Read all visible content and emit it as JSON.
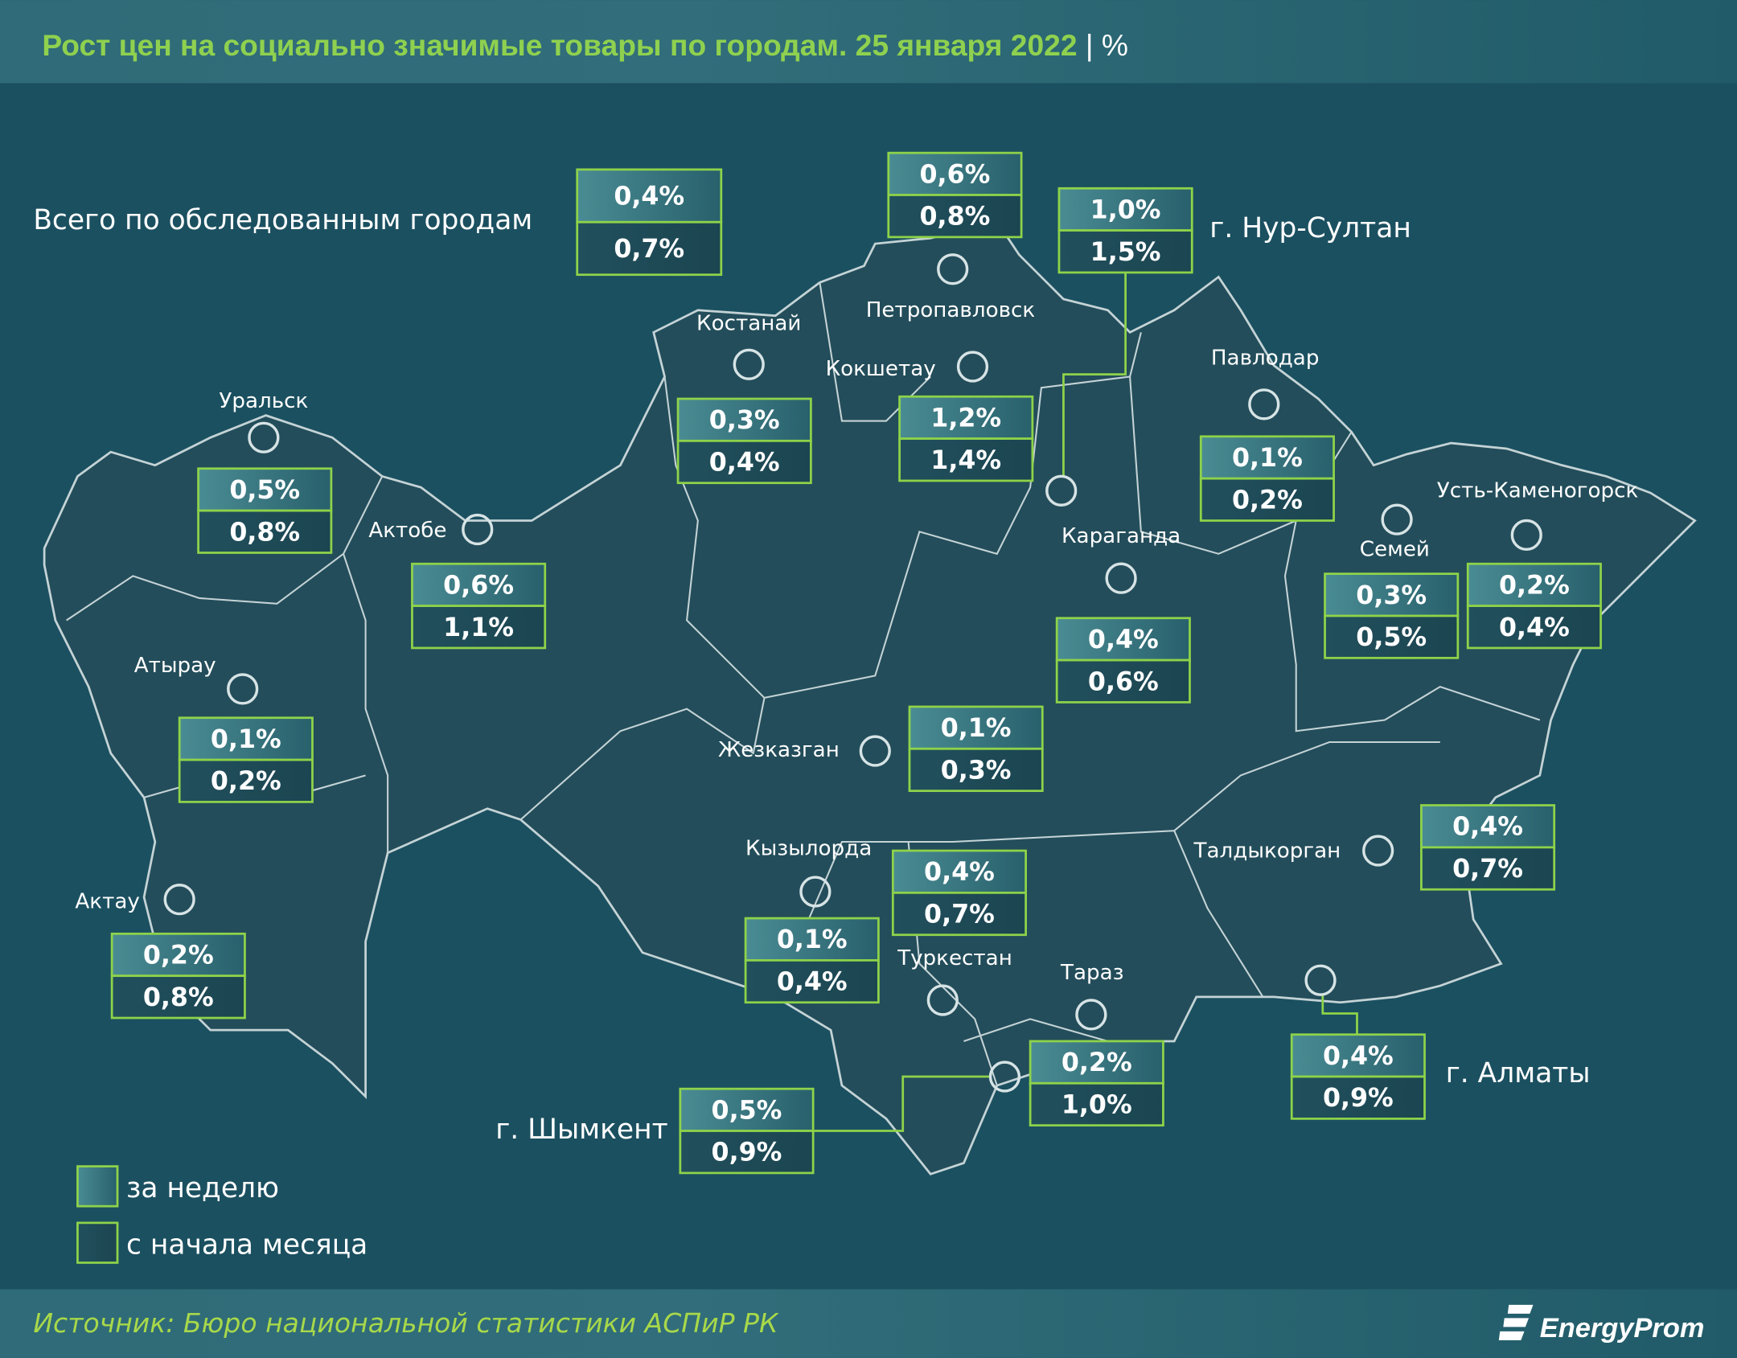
{
  "header": {
    "title": "Рост цен на социально значимые товары по городам. 25 января 2022",
    "separator": "|",
    "unit": "%"
  },
  "total": {
    "name": "Всего по обследованным городам",
    "week": "0,4%",
    "month": "0,7%"
  },
  "cities": [
    {
      "name": "Петропавловск",
      "week": "0,6%",
      "month": "0,8%"
    },
    {
      "name": "г. Нур-Султан",
      "week": "1,0%",
      "month": "1,5%"
    },
    {
      "name": "Костанай",
      "week": "0,3%",
      "month": "0,4%"
    },
    {
      "name": "Кокшетау",
      "week": "1,2%",
      "month": "1,4%"
    },
    {
      "name": "Уральск",
      "week": "0,5%",
      "month": "0,8%"
    },
    {
      "name": "Актобе",
      "week": "0,6%",
      "month": "1,1%"
    },
    {
      "name": "Павлодар",
      "week": "0,1%",
      "month": "0,2%"
    },
    {
      "name": "Семей",
      "week": "0,3%",
      "month": "0,5%"
    },
    {
      "name": "Усть-Каменогорск",
      "week": "0,2%",
      "month": "0,4%"
    },
    {
      "name": "Караганда",
      "week": "0,4%",
      "month": "0,6%"
    },
    {
      "name": "Атырау",
      "week": "0,1%",
      "month": "0,2%"
    },
    {
      "name": "Жезказган",
      "week": "0,1%",
      "month": "0,3%"
    },
    {
      "name": "Талдыкорган",
      "week": "0,4%",
      "month": "0,7%"
    },
    {
      "name": "Туркестан",
      "week": "0,4%",
      "month": "0,7%"
    },
    {
      "name": "Кызылорда",
      "week": "0,1%",
      "month": "0,4%"
    },
    {
      "name": "Тараз",
      "week": "0,2%",
      "month": "1,0%"
    },
    {
      "name": "г. Шымкент",
      "week": "0,5%",
      "month": "0,9%"
    },
    {
      "name": "г. Алматы",
      "week": "0,4%",
      "month": "0,9%"
    },
    {
      "name": "Актау",
      "week": "0,2%",
      "month": "0,8%"
    }
  ],
  "legend": {
    "week": "за неделю",
    "month": "с начала месяца"
  },
  "footer": {
    "source": "Источник: Бюро национальной статистики АСПиР РК",
    "logo": "EnergyProm"
  },
  "colors": {
    "accent": "#8fd14f",
    "background": "#1b4f5d",
    "map_fill": "#234d5a",
    "border": "#8ed34a"
  }
}
